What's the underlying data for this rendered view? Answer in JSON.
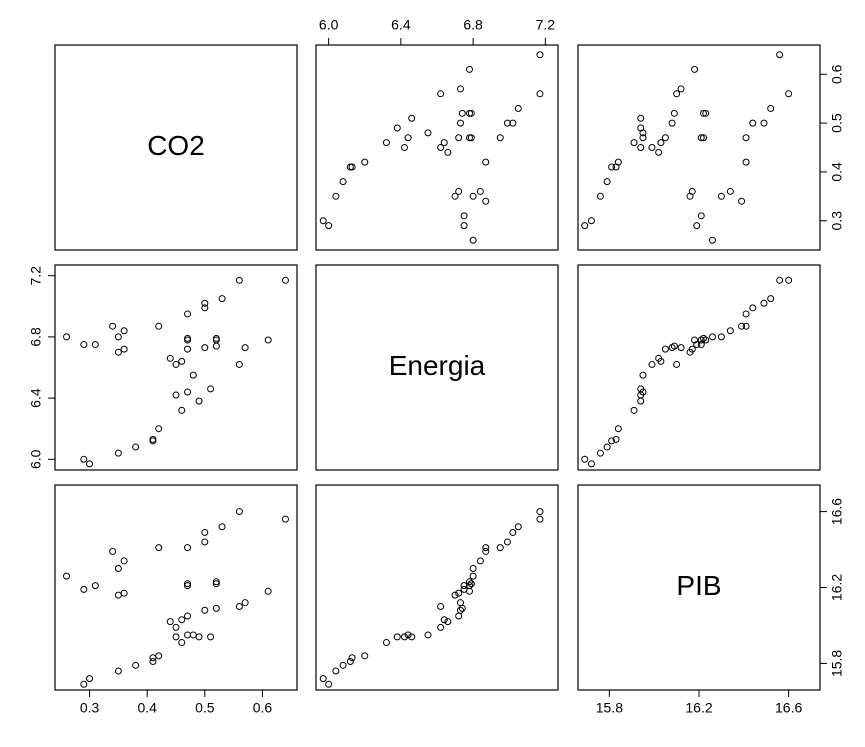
{
  "chart_data": {
    "type": "scatter-matrix",
    "variables": [
      {
        "name": "CO2",
        "values": [
          0.26,
          0.29,
          0.31,
          0.34,
          0.35,
          0.36,
          0.35,
          0.36,
          0.29,
          0.3,
          0.35,
          0.38,
          0.41,
          0.41,
          0.42,
          0.42,
          0.44,
          0.45,
          0.45,
          0.46,
          0.46,
          0.47,
          0.47,
          0.47,
          0.47,
          0.47,
          0.48,
          0.49,
          0.5,
          0.5,
          0.5,
          0.51,
          0.52,
          0.52,
          0.52,
          0.53,
          0.56,
          0.56,
          0.57,
          0.61,
          0.64
        ],
        "lim": [
          0.24,
          0.66
        ],
        "ticks": [
          0.3,
          0.4,
          0.5,
          0.6
        ]
      },
      {
        "name": "Energia",
        "values": [
          6.8,
          6.75,
          6.75,
          6.87,
          6.8,
          6.84,
          6.7,
          6.72,
          6.0,
          5.97,
          6.04,
          6.08,
          6.12,
          6.13,
          6.2,
          6.87,
          6.66,
          6.62,
          6.42,
          6.32,
          6.64,
          6.78,
          6.79,
          6.72,
          6.44,
          6.95,
          6.55,
          6.38,
          6.73,
          6.99,
          7.02,
          6.46,
          6.74,
          6.79,
          6.78,
          7.05,
          6.62,
          7.17,
          6.73,
          6.78,
          7.17
        ],
        "lim": [
          5.93,
          7.27
        ],
        "ticks": [
          {
            "value": 6,
            "label": "6.0"
          },
          6.4,
          6.8,
          7.2
        ]
      },
      {
        "name": "PIB",
        "values": [
          16.26,
          16.19,
          16.21,
          16.39,
          16.3,
          16.34,
          16.16,
          16.17,
          15.69,
          15.72,
          15.76,
          15.79,
          15.81,
          15.83,
          15.84,
          16.41,
          16.02,
          15.99,
          15.94,
          15.91,
          16.03,
          16.21,
          16.22,
          16.05,
          15.95,
          16.41,
          15.95,
          15.94,
          16.08,
          16.44,
          16.49,
          15.94,
          16.09,
          16.22,
          16.23,
          16.52,
          16.1,
          16.6,
          16.12,
          16.18,
          16.56
        ],
        "lim": [
          15.66,
          16.74
        ],
        "ticks": [
          15.8,
          16.2,
          16.6
        ]
      }
    ]
  }
}
